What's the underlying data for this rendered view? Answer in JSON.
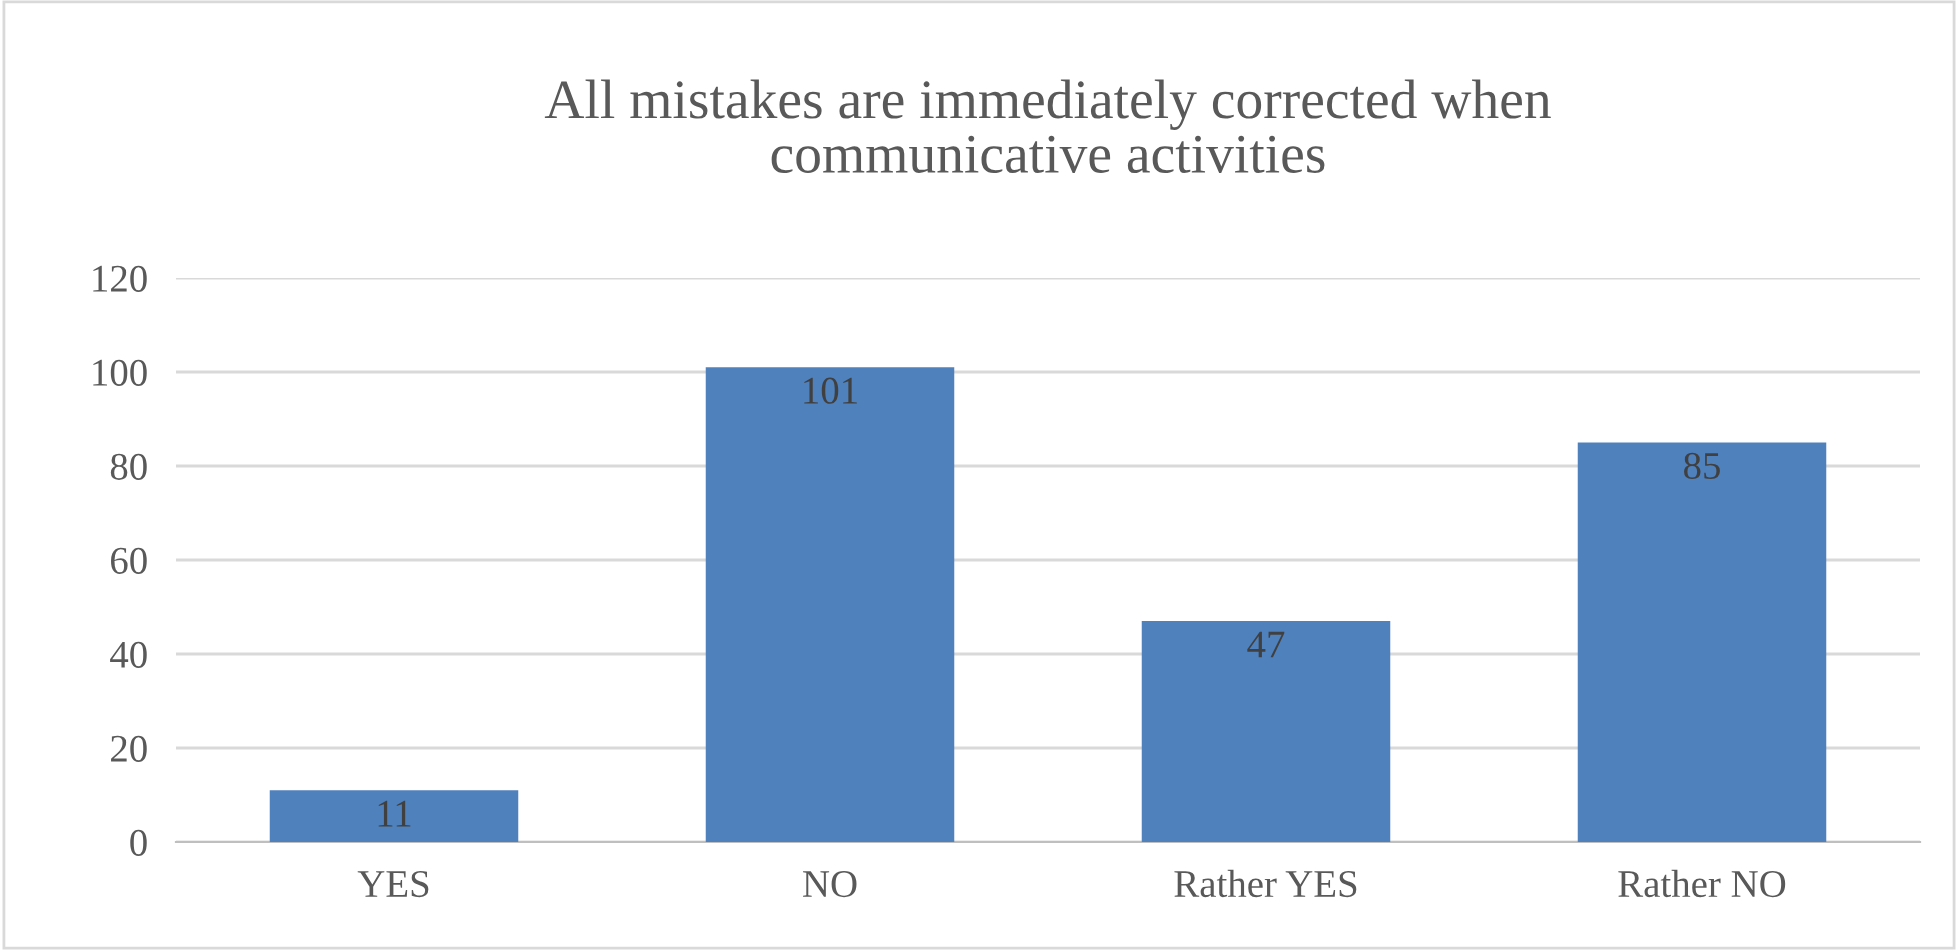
{
  "chart_data": {
    "type": "bar",
    "title": "All mistakes are immediately corrected when\ncommunicative activities",
    "categories": [
      "YES",
      "NO",
      "Rather YES",
      "Rather NO"
    ],
    "values": [
      11,
      101,
      47,
      85
    ],
    "color": "#4f81bd",
    "ylim": [
      0,
      120
    ],
    "yticks": [
      0,
      20,
      40,
      60,
      80,
      100,
      120
    ],
    "grid": "y",
    "data_labels": true
  }
}
